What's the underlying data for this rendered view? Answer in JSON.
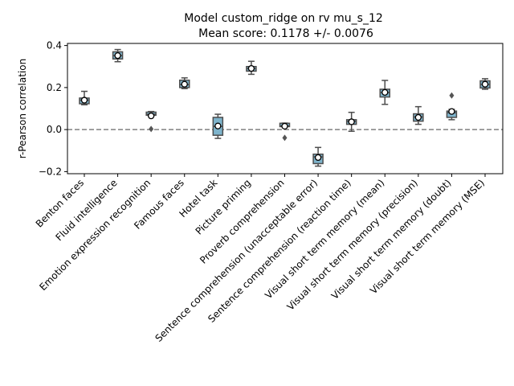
{
  "chart_data": {
    "type": "box",
    "title": "Model custom_ridge on rv mu_s_12",
    "subtitle": "Mean score: 0.1178 +/- 0.0076",
    "xlabel": "",
    "ylabel": "r-Pearson correlation",
    "ylim": [
      -0.21,
      0.41
    ],
    "yticks": [
      -0.2,
      0.0,
      0.2,
      0.4
    ],
    "ytick_labels": [
      "−0.2",
      "0.0",
      "0.2",
      "0.4"
    ],
    "reference_line": 0.0,
    "categories": [
      "Benton faces",
      "Fluid intelligence",
      "Emotion expression recognition",
      "Famous faces",
      "Hotel task",
      "Picture priming",
      "Proverb comprehension",
      "Sentence comprehension (unacceptable error)",
      "Sentence comprehension (reaction time)",
      "Visual short term memory (mean)",
      "Visual short term memory (precision)",
      "Visual short term memory (doubt)",
      "Visual short term memory (MSE)"
    ],
    "boxes": [
      {
        "whislo": 0.118,
        "q1": 0.123,
        "median": 0.14,
        "q3": 0.15,
        "whishi": 0.182,
        "mean": 0.14,
        "fliers": []
      },
      {
        "whislo": 0.323,
        "q1": 0.336,
        "median": 0.352,
        "q3": 0.37,
        "whishi": 0.381,
        "mean": 0.352,
        "fliers": []
      },
      {
        "whislo": 0.065,
        "q1": 0.068,
        "median": 0.073,
        "q3": 0.083,
        "whishi": 0.086,
        "mean": 0.065,
        "fliers": [
          0.003
        ]
      },
      {
        "whislo": 0.195,
        "q1": 0.2,
        "median": 0.214,
        "q3": 0.235,
        "whishi": 0.246,
        "mean": 0.216,
        "fliers": []
      },
      {
        "whislo": -0.042,
        "q1": -0.027,
        "median": 0.015,
        "q3": 0.058,
        "whishi": 0.073,
        "mean": 0.017,
        "fliers": []
      },
      {
        "whislo": 0.263,
        "q1": 0.278,
        "median": 0.29,
        "q3": 0.3,
        "whishi": 0.325,
        "mean": 0.291,
        "fliers": []
      },
      {
        "whislo": 0.013,
        "q1": 0.014,
        "median": 0.017,
        "q3": 0.03,
        "whishi": 0.031,
        "mean": 0.016,
        "fliers": [
          -0.039
        ]
      },
      {
        "whislo": -0.174,
        "q1": -0.162,
        "median": -0.13,
        "q3": -0.117,
        "whishi": -0.085,
        "mean": -0.133,
        "fliers": []
      },
      {
        "whislo": -0.008,
        "q1": 0.025,
        "median": 0.039,
        "q3": 0.047,
        "whishi": 0.082,
        "mean": 0.037,
        "fliers": []
      },
      {
        "whislo": 0.12,
        "q1": 0.155,
        "median": 0.176,
        "q3": 0.192,
        "whishi": 0.234,
        "mean": 0.177,
        "fliers": []
      },
      {
        "whislo": 0.025,
        "q1": 0.04,
        "median": 0.06,
        "q3": 0.075,
        "whishi": 0.109,
        "mean": 0.058,
        "fliers": []
      },
      {
        "whislo": 0.047,
        "q1": 0.058,
        "median": 0.08,
        "q3": 0.088,
        "whishi": 0.096,
        "mean": 0.086,
        "fliers": [
          0.162
        ]
      },
      {
        "whislo": 0.192,
        "q1": 0.198,
        "median": 0.215,
        "q3": 0.232,
        "whishi": 0.242,
        "mean": 0.216,
        "fliers": []
      }
    ],
    "grid": false,
    "legend": "none",
    "colors": {
      "box_fill": "#7eb4cc",
      "box_edge": "#4d4d4d",
      "median": "#4d4d4d",
      "mean_marker_fill": "#ffffff",
      "mean_marker_edge": "#000000",
      "flier": "#555555",
      "reference_line": "#808080"
    }
  }
}
